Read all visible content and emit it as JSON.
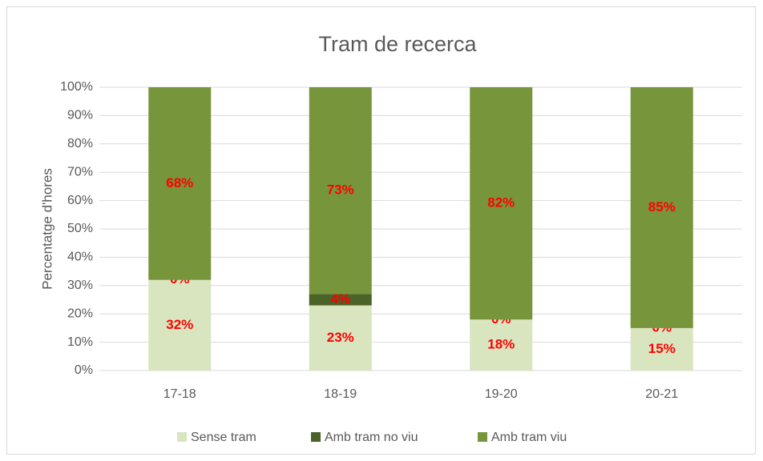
{
  "chart_data": {
    "type": "stacked_bar",
    "title": "Tram de recerca",
    "y_label": "Percentatge d'hores",
    "categories": [
      "17-18",
      "18-19",
      "19-20",
      "20-21"
    ],
    "series": [
      {
        "name": "Sense tram",
        "color": "#d9e5bf",
        "values": [
          32,
          23,
          18,
          15
        ],
        "value_labels": [
          "32%",
          "23%",
          "18%",
          "15%"
        ]
      },
      {
        "name": "Amb tram no viu",
        "color": "#4b6228",
        "values": [
          0,
          4,
          0,
          0
        ],
        "value_labels": [
          "0%",
          "4%",
          "0%",
          "0%"
        ]
      },
      {
        "name": "Amb tram viu",
        "color": "#77953b",
        "values": [
          68,
          73,
          82,
          85
        ],
        "value_labels": [
          "68%",
          "73%",
          "82%",
          "85%"
        ]
      }
    ],
    "label_color": "#ff0000",
    "ylim": [
      0,
      100
    ],
    "yticks": [
      {
        "value": 0,
        "label": "0%"
      },
      {
        "value": 10,
        "label": "10%"
      },
      {
        "value": 20,
        "label": "20%"
      },
      {
        "value": 30,
        "label": "30%"
      },
      {
        "value": 40,
        "label": "40%"
      },
      {
        "value": 50,
        "label": "50%"
      },
      {
        "value": 60,
        "label": "60%"
      },
      {
        "value": 70,
        "label": "70%"
      },
      {
        "value": 80,
        "label": "80%"
      },
      {
        "value": 90,
        "label": "90%"
      },
      {
        "value": 100,
        "label": "100%"
      }
    ],
    "grid": true,
    "legend": "bottom"
  }
}
